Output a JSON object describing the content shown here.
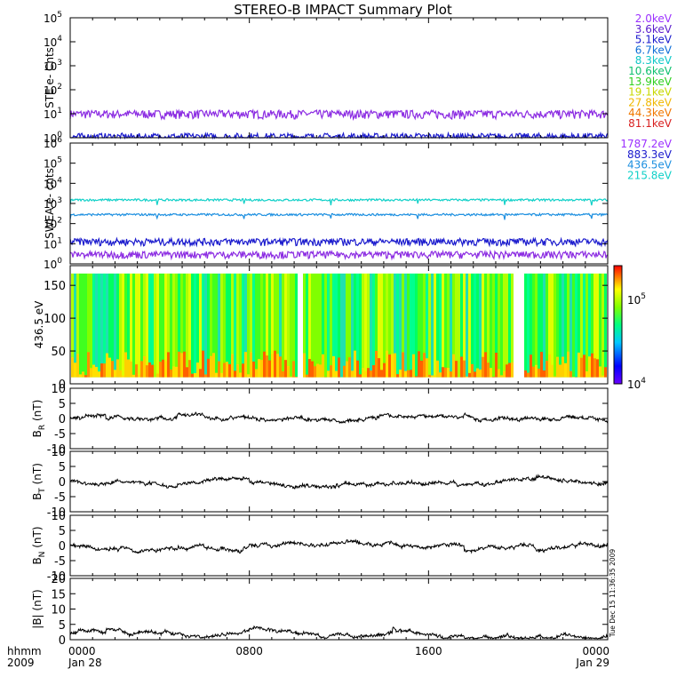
{
  "title": "STEREO-B IMPACT Summary Plot",
  "timestamp": "Tue Dec 15 11:36:35 2009",
  "chart_data": [
    {
      "type": "line",
      "ylabel": "STE e- Cnts",
      "yscale": "log",
      "ylim": [
        1,
        100000
      ],
      "ytick_exponents": [
        "0",
        "1",
        "2",
        "3",
        "4",
        "5"
      ],
      "legend_placement": "right",
      "legend": [
        {
          "label": "2.0keV",
          "color": "#9b30ff"
        },
        {
          "label": "3.6keV",
          "color": "#5a1ccc"
        },
        {
          "label": "5.1keV",
          "color": "#1a1acd"
        },
        {
          "label": "6.7keV",
          "color": "#0f6fd8"
        },
        {
          "label": "8.3keV",
          "color": "#10c8c8"
        },
        {
          "label": "10.6keV",
          "color": "#10c070"
        },
        {
          "label": "13.9keV",
          "color": "#30d020"
        },
        {
          "label": "19.1keV",
          "color": "#c8d800"
        },
        {
          "label": "27.8keV",
          "color": "#f0b800"
        },
        {
          "label": "44.3keV",
          "color": "#f07800"
        },
        {
          "label": "81.1keV",
          "color": "#d82020"
        }
      ],
      "series": [
        {
          "name": "2.0keV",
          "typical_value": 10,
          "color": "#8b2be2"
        },
        {
          "name": "5.1keV",
          "typical_value": 1.1,
          "color": "#1a1acd"
        }
      ]
    },
    {
      "type": "line",
      "ylabel": "SWEA e- cnts",
      "yscale": "log",
      "ylim": [
        1,
        1000000
      ],
      "ytick_exponents": [
        "0",
        "1",
        "2",
        "3",
        "4",
        "5",
        "6"
      ],
      "legend_placement": "right",
      "legend": [
        {
          "label": "1787.2eV",
          "color": "#9b30ff"
        },
        {
          "label": "883.3eV",
          "color": "#1a1acd"
        },
        {
          "label": "436.5eV",
          "color": "#1e90e0"
        },
        {
          "label": "215.8eV",
          "color": "#10d0c8"
        }
      ],
      "series": [
        {
          "name": "215.8eV",
          "typical_value": 1500,
          "color": "#10d0c8"
        },
        {
          "name": "436.5eV",
          "typical_value": 280,
          "color": "#1e90e0"
        },
        {
          "name": "883.3eV",
          "typical_value": 13,
          "color": "#1a1acd"
        },
        {
          "name": "1787.2eV",
          "typical_value": 3,
          "color": "#8b2be2"
        }
      ]
    },
    {
      "type": "heatmap",
      "ylabel": "436.5 eV",
      "ylim": [
        0,
        180
      ],
      "yticks": [
        "0",
        "50",
        "100",
        "150"
      ],
      "colorbar_scale": "log",
      "colorbar_range": [
        10000,
        250000
      ],
      "colorbar_labels": [
        {
          "base": "10",
          "exp": "4",
          "value": 10000
        },
        {
          "base": "10",
          "exp": "5",
          "value": 100000
        }
      ]
    },
    {
      "type": "line",
      "ylabel_main": "B",
      "ylabel_sub": "R",
      "ylabel_unit": " (nT)",
      "ylim": [
        -10,
        10
      ],
      "yticks": [
        "10",
        "5",
        "0",
        "-5",
        "-10"
      ],
      "color": "#000000"
    },
    {
      "type": "line",
      "ylabel_main": "B",
      "ylabel_sub": "T",
      "ylabel_unit": " (nT)",
      "ylim": [
        -10,
        10
      ],
      "yticks": [
        "10",
        "5",
        "0",
        "-5",
        "-10"
      ],
      "color": "#000000"
    },
    {
      "type": "line",
      "ylabel_main": "B",
      "ylabel_sub": "N",
      "ylabel_unit": " (nT)",
      "ylim": [
        -10,
        10
      ],
      "yticks": [
        "10",
        "5",
        "0",
        "-5",
        "-10"
      ],
      "color": "#000000"
    },
    {
      "type": "line",
      "ylabel_main": "|B|",
      "ylabel_sub": "",
      "ylabel_unit": " (nT)",
      "ylim": [
        0,
        20
      ],
      "yticks": [
        "20",
        "15",
        "10",
        "5",
        "0"
      ],
      "color": "#000000"
    }
  ],
  "x_axis": {
    "range_hours": [
      0,
      24
    ],
    "left_labels": [
      "hhmm",
      "2009"
    ],
    "ticks": [
      {
        "hour": 0,
        "label": "0000",
        "sub": "Jan 28"
      },
      {
        "hour": 8,
        "label": "0800",
        "sub": ""
      },
      {
        "hour": 16,
        "label": "1600",
        "sub": ""
      },
      {
        "hour": 24,
        "label": "0000",
        "sub": "Jan 29"
      }
    ]
  }
}
